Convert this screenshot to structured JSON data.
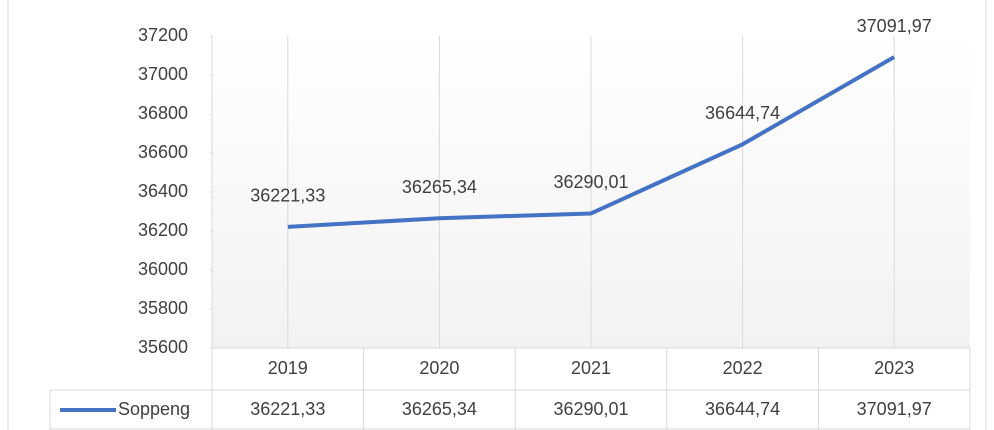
{
  "chart_data": {
    "type": "line",
    "categories": [
      "2019",
      "2020",
      "2021",
      "2022",
      "2023"
    ],
    "series": [
      {
        "name": "Soppeng",
        "color": "#4472c4",
        "values": [
          36221.33,
          36265.34,
          36290.01,
          36644.74,
          37091.97
        ],
        "value_labels": [
          "36221,33",
          "36265,34",
          "36290,01",
          "36644,74",
          "37091,97"
        ]
      }
    ],
    "ylim": [
      35600,
      37200
    ],
    "yticks": [
      35600,
      35800,
      36000,
      36200,
      36400,
      36600,
      36800,
      37000,
      37200
    ],
    "grid": "vertical",
    "data_table": true
  }
}
